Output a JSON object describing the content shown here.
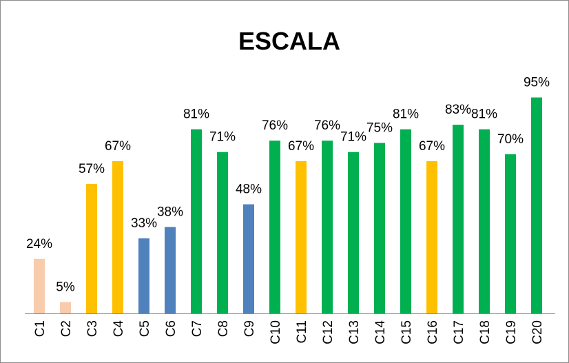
{
  "chart_data": {
    "type": "bar",
    "title": "ESCALA",
    "categories": [
      "C1",
      "C2",
      "C3",
      "C4",
      "C5",
      "C6",
      "C7",
      "C8",
      "C9",
      "C10",
      "C11",
      "C12",
      "C13",
      "C14",
      "C15",
      "C16",
      "C17",
      "C18",
      "C19",
      "C20"
    ],
    "values": [
      24,
      5,
      57,
      67,
      33,
      38,
      81,
      71,
      48,
      76,
      67,
      76,
      71,
      75,
      81,
      67,
      83,
      81,
      70,
      95
    ],
    "value_labels": [
      "24%",
      "5%",
      "57%",
      "67%",
      "33%",
      "38%",
      "81%",
      "71%",
      "48%",
      "76%",
      "67%",
      "76%",
      "71%",
      "75%",
      "81%",
      "67%",
      "83%",
      "81%",
      "70%",
      "95%"
    ],
    "colors": [
      "#f8cbad",
      "#f8cbad",
      "#ffc000",
      "#ffc000",
      "#4f81bd",
      "#4f81bd",
      "#00b050",
      "#00b050",
      "#4f81bd",
      "#00b050",
      "#ffc000",
      "#00b050",
      "#00b050",
      "#00b050",
      "#00b050",
      "#ffc000",
      "#00b050",
      "#00b050",
      "#00b050",
      "#00b050"
    ]
  }
}
